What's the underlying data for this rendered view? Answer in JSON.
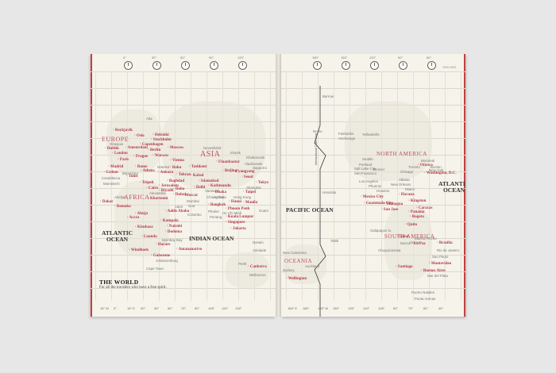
{
  "page_mark": "2021 INS",
  "title_box": {
    "title": "THE WORLD",
    "subtitle": "For all the travelers who have a free spirit."
  },
  "idl_label": "International Date Line",
  "left_top_degrees": [
    "0°",
    "30°",
    "60°",
    "90°",
    "120°"
  ],
  "right_top_degrees": [
    "180°",
    "150°",
    "120°",
    "90°",
    "60°"
  ],
  "left_bottom_degrees": [
    "15° W",
    "0°",
    "15° E",
    "30°",
    "45°",
    "60°",
    "75°",
    "90°",
    "105°",
    "120°",
    "135°"
  ],
  "right_bottom_degrees": [
    "165° E",
    "180°",
    "165° W",
    "150°",
    "135°",
    "120°",
    "105°",
    "90°",
    "75°",
    "60°",
    "45°"
  ],
  "left": {
    "continents": [
      "EUROPE",
      "AFRICA",
      "ASIA"
    ],
    "oceans": [
      "ATLANTIC\nOCEAN",
      "INDIAN OCEAN"
    ],
    "capitals": [
      "Reykjavik",
      "Oslo",
      "Helsinki",
      "Stockholm",
      "Copenhagen",
      "Moscow",
      "Berlin",
      "Dublin",
      "Amsterdam",
      "London",
      "Warsaw",
      "Prague",
      "Paris",
      "Vienna",
      "Madrid",
      "Rome",
      "Lisbon",
      "Athens",
      "Ankara",
      "Tunis",
      "Tripoli",
      "Cairo",
      "Baku",
      "Tashkent",
      "Beijing",
      "Pyongyang",
      "Seoul",
      "Tokyo",
      "Ulaanbaatar",
      "Tehran",
      "Kabul",
      "Islamabad",
      "Baghdad",
      "Jerusalem",
      "Riyadh",
      "Doha",
      "Dubai",
      "Muscat",
      "Delhi",
      "Kathmandu",
      "Dhaka",
      "Taipei",
      "Manila",
      "Bangkok",
      "Hanoi",
      "Phnom Penh",
      "Kuala Lumpur",
      "Singapore",
      "Jakarta",
      "Khartoum",
      "Addis Ababa",
      "Dakar",
      "Bamako",
      "Abuja",
      "Accra",
      "Kinshasa",
      "Kampala",
      "Nairobi",
      "Dodoma",
      "Luanda",
      "Harare",
      "Windhoek",
      "Gaborone",
      "Antananarivo",
      "Canberra"
    ],
    "cities": [
      "Alta",
      "Glasgow",
      "Barcelona",
      "Casablanca",
      "Marrakech",
      "Istanbul",
      "Alexandria",
      "Abidjan",
      "Mumbai",
      "Goa",
      "Colombo",
      "Chiang Mai",
      "Phuket",
      "Ho Chi Minh",
      "Penang",
      "Hong Kong",
      "Shanghai",
      "Sapporro",
      "Vladivostok",
      "Khabarovsk",
      "Irkutsk",
      "Novosibirsk",
      "Varanasi",
      "Kolkata",
      "Guam",
      "Darwin",
      "Perth",
      "Melbourne",
      "Mombay Bay",
      "Johannesburg",
      "Cape Town",
      "Adelaide",
      "Aden"
    ]
  },
  "right": {
    "continents": [
      "NORTH AMERICA",
      "SOUTH AMERICA",
      "OCEANIA"
    ],
    "oceans": [
      "PACIFIC OCEAN",
      "ATLANTIC\nOCEAN"
    ],
    "capitals": [
      "Ottawa",
      "Washington, D.C.",
      "Mexico City",
      "Guatemala City",
      "Managua",
      "San Jose",
      "Kingston",
      "Havana",
      "Panama",
      "Caracas",
      "Bogota",
      "Quito",
      "Lima",
      "La Paz",
      "Santiago",
      "Brasilia",
      "Montevideo",
      "Buenos Aires",
      "Wellington"
    ],
    "cities": [
      "Barrow",
      "Nome",
      "Fairbanks",
      "Anchorage",
      "Yellowknife",
      "Seattle",
      "Portland",
      "San Francisco",
      "Los Angeles",
      "Salt Lake City",
      "Phoenix",
      "Denver",
      "Chicago",
      "Toronto",
      "Montreal",
      "Boston",
      "New York",
      "Houston",
      "New Orleans",
      "Atlanta",
      "Miami",
      "Honolulu",
      "Tahiti",
      "Galapagos Is.",
      "Machu Picchu",
      "Cusco",
      "Nazca",
      "Chuquicamata",
      "Rio de Janeiro",
      "Sao Paulo",
      "New Caledonia",
      "Auckland",
      "Sydney",
      "Puerto Natales",
      "Punta Arenas",
      "Mar del Plata"
    ]
  },
  "colors": {
    "background": "#e7e7e7",
    "paper": "#f5f3ea",
    "accent": "#b4384a",
    "spine": "#c0413f"
  }
}
